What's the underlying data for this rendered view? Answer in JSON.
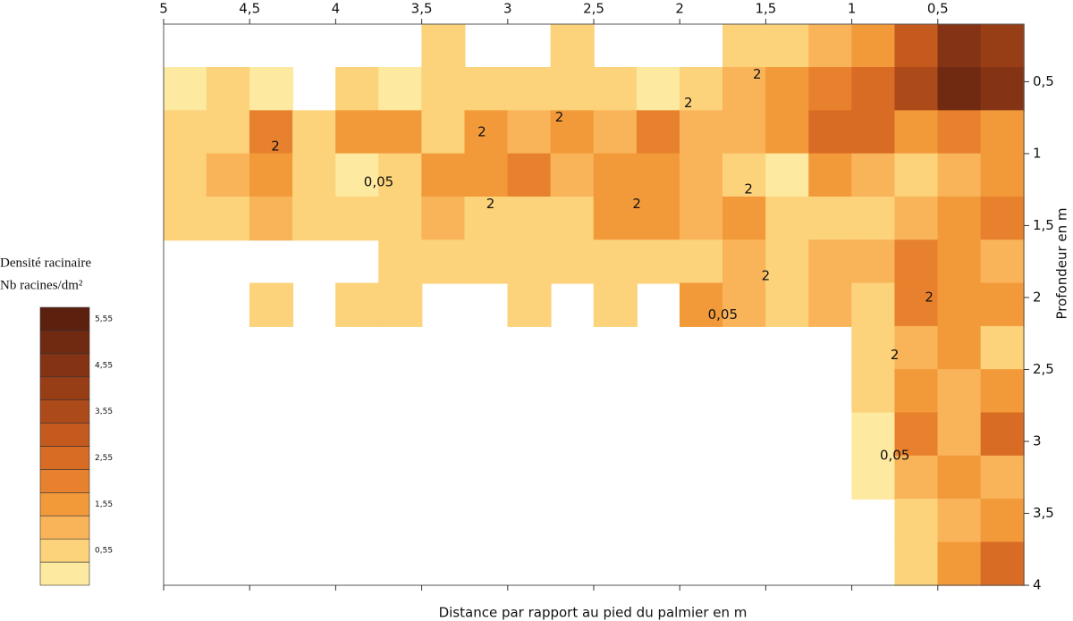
{
  "chart_data": {
    "type": "contour",
    "xlabel": "Distance par rapport au pied du palmier en m",
    "ylabel": "Profondeur en m",
    "colorbar_title": "Densité racinaire",
    "colorbar_subtitle": "Nb racines/dm²",
    "xlim": [
      5,
      0
    ],
    "ylim": [
      0.1,
      4
    ],
    "xticks": [
      5,
      {
        "value": 4.5,
        "label": "4,5"
      },
      4,
      {
        "value": 3.5,
        "label": "3,5"
      },
      3,
      {
        "value": 2.5,
        "label": "2,5"
      },
      2,
      {
        "value": 1.5,
        "label": "1,5"
      },
      1,
      {
        "value": 0.5,
        "label": "0,5"
      }
    ],
    "yticks": [
      {
        "value": 0.5,
        "label": "0,5"
      },
      1,
      {
        "value": 1.5,
        "label": "1,5"
      },
      2,
      {
        "value": 2.5,
        "label": "2,5"
      },
      3,
      {
        "value": 3.5,
        "label": "3,5"
      },
      4
    ],
    "x_bins": [
      5,
      4.75,
      4.5,
      4.25,
      4,
      3.75,
      3.5,
      3.25,
      3,
      2.75,
      2.5,
      2.25,
      2,
      1.75,
      1.5,
      1.25,
      1,
      0.75,
      0.5,
      0.25,
      0
    ],
    "y_bins": [
      0.1,
      0.4,
      0.7,
      1.0,
      1.3,
      1.6,
      1.9,
      2.2,
      2.5,
      2.8,
      3.1,
      3.4,
      3.7,
      4.0
    ],
    "values": [
      [
        null,
        null,
        null,
        null,
        null,
        null,
        0.6,
        null,
        null,
        0.6,
        null,
        null,
        null,
        0.6,
        1,
        1.2,
        2,
        3.5,
        5,
        4.5
      ],
      [
        0.3,
        0.6,
        0.3,
        null,
        0.6,
        0.3,
        1,
        0.6,
        0.6,
        0.6,
        0.6,
        0.3,
        1,
        1.5,
        2,
        2.5,
        3,
        4,
        5.5,
        5
      ],
      [
        0.6,
        0.6,
        2.5,
        0.6,
        2,
        2,
        1,
        2,
        1.5,
        2,
        1.5,
        2.5,
        1.5,
        1.5,
        2,
        3,
        3,
        2,
        2.5,
        2
      ],
      [
        1,
        1.5,
        2,
        0.6,
        0.05,
        1,
        2,
        2,
        2.5,
        1.5,
        2,
        2,
        1.5,
        0.6,
        0.3,
        2,
        1.5,
        1,
        1.5,
        2
      ],
      [
        0.6,
        1,
        1.5,
        1,
        0.6,
        0.6,
        1.5,
        1,
        0.6,
        1,
        2,
        2,
        1.5,
        2,
        0.6,
        1,
        0.6,
        1.5,
        2,
        2.5
      ],
      [
        null,
        null,
        null,
        null,
        null,
        0.6,
        0.6,
        0.6,
        1,
        0.6,
        0.6,
        0.6,
        1,
        1.5,
        1,
        1.5,
        1.5,
        2.5,
        2,
        1.5
      ],
      [
        null,
        null,
        0.6,
        null,
        0.6,
        0.6,
        null,
        null,
        0.6,
        null,
        0.6,
        null,
        2,
        1.5,
        1,
        1.5,
        1,
        2.5,
        2,
        2
      ],
      [
        null,
        null,
        null,
        null,
        null,
        null,
        null,
        null,
        null,
        null,
        null,
        null,
        null,
        null,
        null,
        null,
        0.6,
        1.5,
        2,
        1
      ],
      [
        null,
        null,
        null,
        null,
        null,
        null,
        null,
        null,
        null,
        null,
        null,
        null,
        null,
        null,
        null,
        null,
        0.6,
        2,
        1.5,
        2
      ],
      [
        null,
        null,
        null,
        null,
        null,
        null,
        null,
        null,
        null,
        null,
        null,
        null,
        null,
        null,
        null,
        null,
        0.3,
        2.5,
        1.5,
        3
      ],
      [
        null,
        null,
        null,
        null,
        null,
        null,
        null,
        null,
        null,
        null,
        null,
        null,
        null,
        null,
        null,
        null,
        0.05,
        1.5,
        2,
        1.5
      ],
      [
        null,
        null,
        null,
        null,
        null,
        null,
        null,
        null,
        null,
        null,
        null,
        null,
        null,
        null,
        null,
        null,
        null,
        1,
        1.5,
        2
      ],
      [
        null,
        null,
        null,
        null,
        null,
        null,
        null,
        null,
        null,
        null,
        null,
        null,
        null,
        null,
        null,
        null,
        null,
        0.6,
        2,
        3
      ]
    ],
    "levels": [
      0.05,
      0.55,
      1.05,
      1.55,
      2.05,
      2.55,
      3.05,
      3.55,
      4.05,
      4.55,
      5.05,
      5.55
    ],
    "colors": [
      "#fde9a0",
      "#fcd27a",
      "#f9b45a",
      "#f29a3a",
      "#e8812d",
      "#d96c24",
      "#c45a1e",
      "#ad4a1a",
      "#983e17",
      "#843414",
      "#712a12",
      "#5c200e"
    ],
    "colorbar_ticks": [
      {
        "value": 0.55,
        "label": "0,55"
      },
      {
        "value": 1.55,
        "label": "1,55"
      },
      {
        "value": 2.55,
        "label": "2,55"
      },
      {
        "value": 3.55,
        "label": "3,55"
      },
      {
        "value": 4.55,
        "label": "4,55"
      },
      {
        "value": 5.55,
        "label": "5,55"
      }
    ],
    "annotations": [
      {
        "text": "2",
        "x": 1.55,
        "y": 0.45
      },
      {
        "text": "2",
        "x": 4.35,
        "y": 0.95
      },
      {
        "text": "2",
        "x": 3.15,
        "y": 0.85
      },
      {
        "text": "2",
        "x": 2.7,
        "y": 0.75
      },
      {
        "text": "2",
        "x": 1.95,
        "y": 0.65
      },
      {
        "text": "2",
        "x": 3.1,
        "y": 1.35
      },
      {
        "text": "2",
        "x": 2.25,
        "y": 1.35
      },
      {
        "text": "2",
        "x": 1.6,
        "y": 1.25
      },
      {
        "text": "2",
        "x": 1.5,
        "y": 1.85
      },
      {
        "text": "2",
        "x": 0.55,
        "y": 2.0
      },
      {
        "text": "2",
        "x": 0.75,
        "y": 2.4
      },
      {
        "text": "0,05",
        "x": 3.75,
        "y": 1.2
      },
      {
        "text": "0,05",
        "x": 1.75,
        "y": 2.12
      },
      {
        "text": "0,05",
        "x": 0.75,
        "y": 3.1
      }
    ]
  }
}
